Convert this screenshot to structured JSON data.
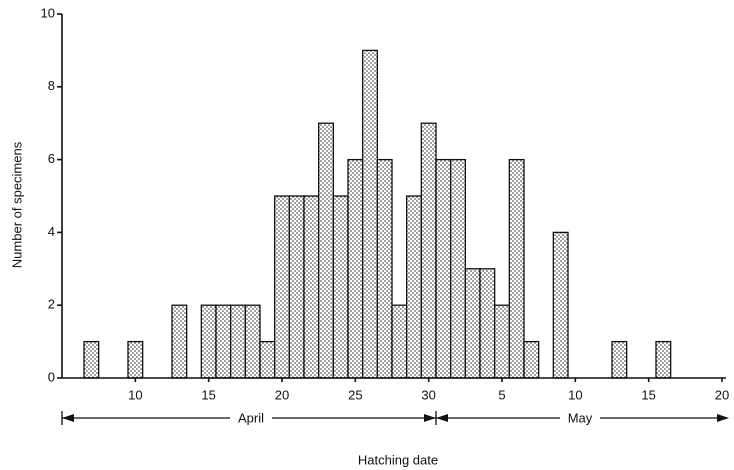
{
  "chart_data": {
    "type": "bar",
    "x_label": "Hatching date",
    "y_label": "Number of specimens",
    "x": [
      7,
      10,
      13,
      15,
      16,
      17,
      18,
      19,
      20,
      21,
      22,
      23,
      24,
      25,
      26,
      27,
      28,
      29,
      30,
      31,
      32,
      33,
      34,
      35,
      36,
      37,
      39,
      43,
      46
    ],
    "values": [
      1,
      1,
      2,
      2,
      2,
      2,
      2,
      1,
      5,
      5,
      5,
      7,
      5,
      6,
      9,
      6,
      2,
      5,
      7,
      6,
      6,
      3,
      3,
      2,
      6,
      1,
      4,
      1,
      1
    ],
    "color": "#333333",
    "xlim": [
      5,
      50
    ],
    "xticks": [
      10,
      15,
      20,
      25,
      30,
      {
        "value": 35,
        "label": "5"
      },
      {
        "value": 40,
        "label": "10"
      },
      {
        "value": 45,
        "label": "15"
      },
      {
        "value": 50,
        "label": "20"
      }
    ],
    "ylim": [
      0,
      10
    ],
    "yticks": [
      0,
      2,
      4,
      6,
      8,
      10
    ],
    "months": [
      "April",
      "May"
    ]
  }
}
